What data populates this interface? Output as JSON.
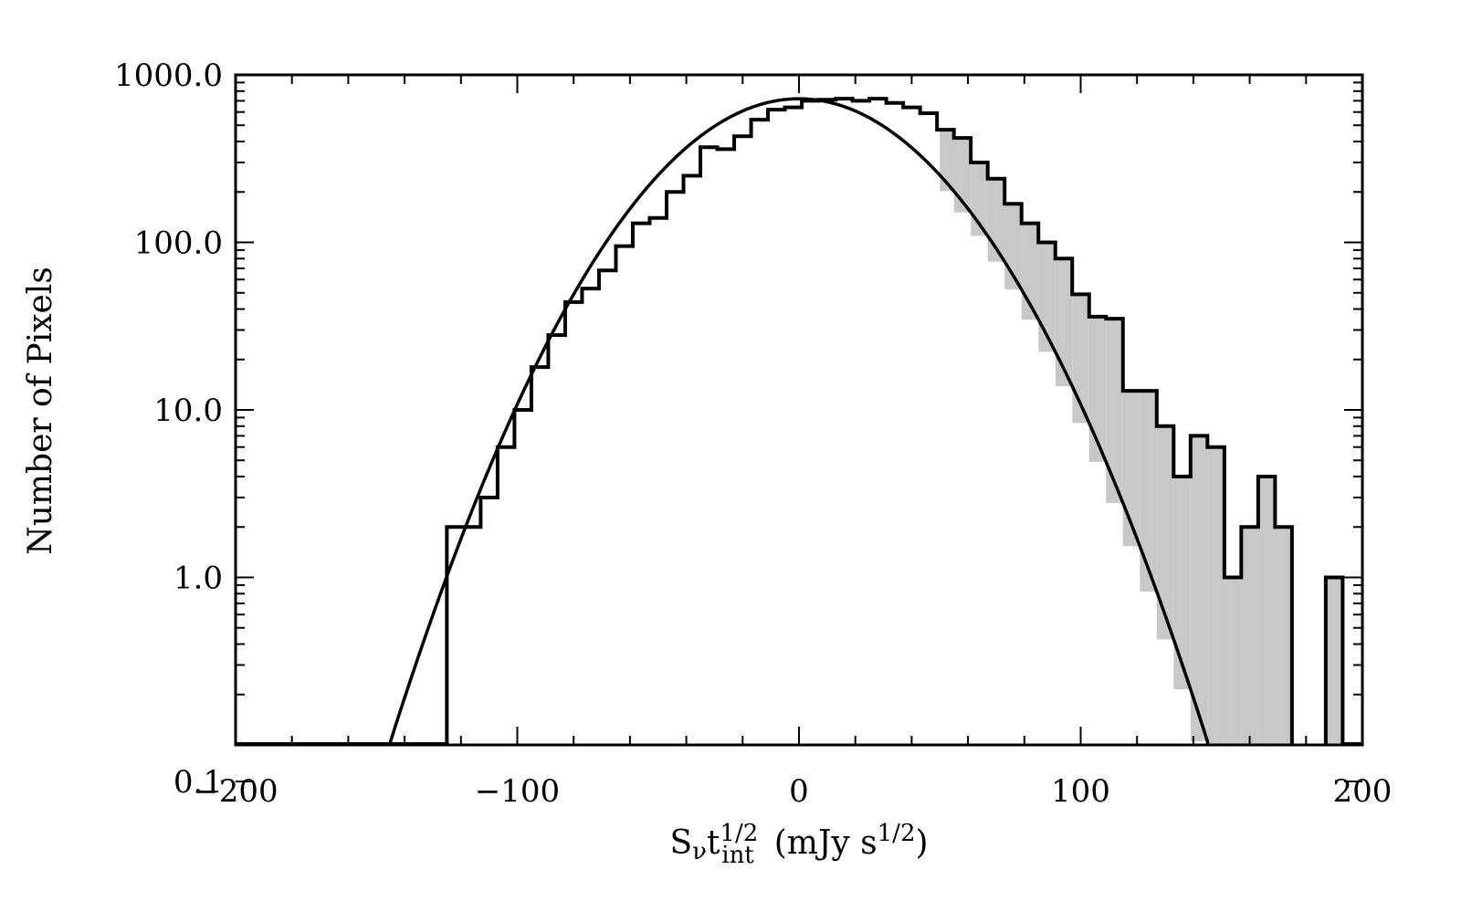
{
  "chart_data": {
    "type": "histogram",
    "title": "",
    "xlabel": {
      "symbol": "S",
      "symbol_sub": "ν",
      "var": "t",
      "var_sup": "1/2",
      "var_sub": "int",
      "unit_open": "(mJy s",
      "unit_sup": "1/2",
      "unit_close": ")"
    },
    "ylabel": "Number of Pixels",
    "xlim": [
      -200,
      200
    ],
    "ylim": [
      0.1,
      1000
    ],
    "yscale": "log",
    "x_ticks": [
      {
        "value": -200,
        "label": "−200"
      },
      {
        "value": -100,
        "label": "−100"
      },
      {
        "value": 0,
        "label": "0"
      },
      {
        "value": 100,
        "label": "100"
      },
      {
        "value": 200,
        "label": "200"
      }
    ],
    "y_ticks": [
      {
        "value": 0.1,
        "label": "0.1"
      },
      {
        "value": 1,
        "label": "1.0"
      },
      {
        "value": 10,
        "label": "10.0"
      },
      {
        "value": 100,
        "label": "100.0"
      },
      {
        "value": 1000,
        "label": "1000.0"
      }
    ],
    "bin_width": 6,
    "histogram": {
      "bin_edges_start": -125,
      "counts": [
        2,
        2,
        3,
        6,
        10,
        18,
        28,
        44,
        53,
        68,
        95,
        130,
        140,
        200,
        250,
        370,
        360,
        430,
        540,
        620,
        640,
        700,
        710,
        720,
        700,
        720,
        680,
        640,
        590,
        470,
        420,
        300,
        240,
        170,
        130,
        100,
        80,
        49,
        36,
        35,
        13,
        13,
        8,
        4,
        7,
        6,
        1,
        2,
        4,
        2,
        0,
        0,
        1
      ]
    },
    "fit_curve": {
      "type": "gaussian",
      "amplitude": 720,
      "center": 0,
      "sigma": 34.5
    },
    "excess_shading": {
      "x_from": 50,
      "color": "#c8c8c8"
    }
  }
}
